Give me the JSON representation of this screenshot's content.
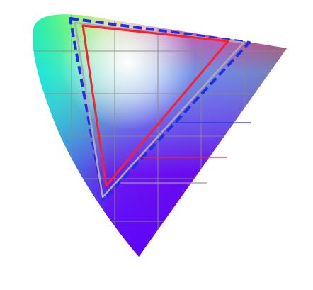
{
  "diagram": {
    "kind": "chromaticity-gamut-comparison",
    "background_color": "#ffffff",
    "spectral_locus_colors": {
      "green": "#19ff2a",
      "cyan": "#00e1ff",
      "blue": "#3a00ff",
      "violet": "#7a00ff",
      "magenta": "#ff12d4",
      "red": "#ff0a34",
      "yellow": "#e0ff3a",
      "white_point": "#ffffff"
    },
    "grid_color": "#8a8a8a",
    "gamuts": [
      {
        "id": "gamut-outer",
        "stroke": "#1e2fe8",
        "style": "dashed"
      },
      {
        "id": "gamut-middle",
        "stroke": "#ff1e2c",
        "style": "solid"
      },
      {
        "id": "gamut-inner",
        "stroke": "#b5a6b0",
        "style": "solid"
      }
    ],
    "legend_lines": [
      {
        "id": "legend-line-blue",
        "stroke": "#1e2fe8"
      },
      {
        "id": "legend-line-red",
        "stroke": "#ff1e2c"
      },
      {
        "id": "legend-line-gray",
        "stroke": "#9a9a9a"
      }
    ]
  }
}
